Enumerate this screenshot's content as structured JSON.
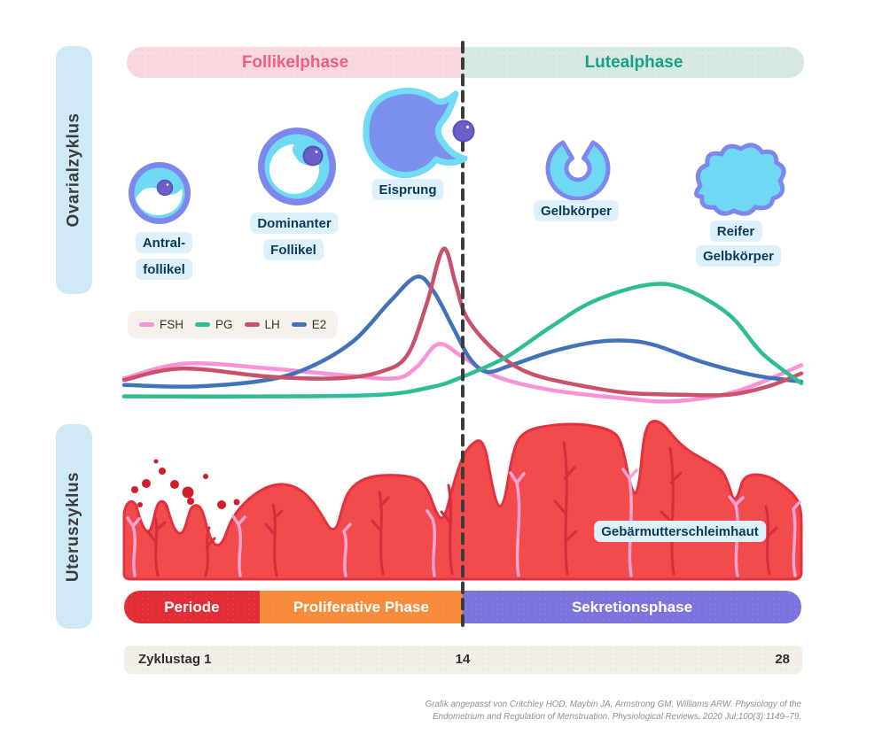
{
  "sections": {
    "ovarian": {
      "label": "Ovarialzyklus",
      "box_bg": "#cfeaf6",
      "text_color": "#3d3d3d"
    },
    "uterine": {
      "label": "Uteruszyklus",
      "box_bg": "#cfeaf6",
      "text_color": "#3d3d3d"
    }
  },
  "header": {
    "follicular": {
      "label": "Follikelphase",
      "bg": "#f8d9de",
      "text": "#ed5f80"
    },
    "luteal": {
      "label": "Lutealphase",
      "bg": "#d7eae2",
      "text": "#16a085"
    }
  },
  "stages": {
    "antral": {
      "line1": "Antral-",
      "line2": "follikel"
    },
    "dominant": {
      "line1": "Dominanter",
      "line2": "Follikel"
    },
    "ovulation": {
      "label": "Eisprung"
    },
    "corpus_luteum": {
      "label": "Gelbkörper"
    },
    "mature_corpus_luteum": {
      "line1": "Reifer",
      "line2": "Gelbkörper"
    }
  },
  "chart_data": {
    "type": "line",
    "title": "",
    "xlabel": "Zyklustag",
    "ylabel": "",
    "x_range": [
      0,
      28
    ],
    "x_ticks": [
      1,
      14,
      28
    ],
    "grid": false,
    "legend_position": "top-left",
    "divider_day": 14,
    "series": [
      {
        "name": "FSH",
        "color": "#f893d6",
        "points": [
          [
            0,
            15
          ],
          [
            2.5,
            24
          ],
          [
            6,
            21
          ],
          [
            9,
            17
          ],
          [
            11.2,
            15
          ],
          [
            12.1,
            22
          ],
          [
            13,
            36
          ],
          [
            14,
            28
          ],
          [
            15.4,
            16
          ],
          [
            17.6,
            8
          ],
          [
            20.5,
            3
          ],
          [
            22.7,
            1
          ],
          [
            25.3,
            7
          ],
          [
            28,
            23
          ]
        ]
      },
      {
        "name": "PG",
        "color": "#2fbe93",
        "points": [
          [
            0,
            4
          ],
          [
            6,
            4
          ],
          [
            10.6,
            5
          ],
          [
            12.8,
            10
          ],
          [
            14,
            16
          ],
          [
            15.8,
            28
          ],
          [
            17.6,
            46
          ],
          [
            19.4,
            62
          ],
          [
            21.6,
            72
          ],
          [
            23.1,
            70
          ],
          [
            25,
            54
          ],
          [
            26.4,
            30
          ],
          [
            28,
            12
          ]
        ]
      },
      {
        "name": "LH",
        "color": "#c9516a",
        "points": [
          [
            0,
            14
          ],
          [
            2.4,
            21
          ],
          [
            6,
            16
          ],
          [
            8.8,
            15
          ],
          [
            10.6,
            19
          ],
          [
            11.7,
            29
          ],
          [
            12.5,
            60
          ],
          [
            13.2,
            94
          ],
          [
            13.7,
            73
          ],
          [
            14.1,
            54
          ],
          [
            14.9,
            38
          ],
          [
            16,
            24
          ],
          [
            17.2,
            16
          ],
          [
            19.1,
            10
          ],
          [
            20.9,
            6
          ],
          [
            23.1,
            5
          ],
          [
            25,
            5
          ],
          [
            26.6,
            10
          ],
          [
            28,
            18
          ]
        ]
      },
      {
        "name": "E2",
        "color": "#4273b8",
        "points": [
          [
            0,
            11
          ],
          [
            2.9,
            10
          ],
          [
            5.9,
            14
          ],
          [
            7.7,
            22
          ],
          [
            9.5,
            38
          ],
          [
            11,
            62
          ],
          [
            12.1,
            77
          ],
          [
            12.8,
            68
          ],
          [
            13.6,
            46
          ],
          [
            14.3,
            27
          ],
          [
            15,
            19
          ],
          [
            16,
            23
          ],
          [
            17.6,
            31
          ],
          [
            19.4,
            37
          ],
          [
            20.8,
            38
          ],
          [
            22,
            35
          ],
          [
            23.9,
            25
          ],
          [
            26,
            17
          ],
          [
            28,
            13
          ]
        ]
      }
    ]
  },
  "uterine_art": {
    "lining_label": "Gebärmutterschleimhaut"
  },
  "timeline": {
    "phases": [
      {
        "label": "Periode",
        "color": "#e22d36",
        "start_day": 0,
        "end_day": 5.6
      },
      {
        "label": "Proliferative Phase",
        "color": "#f68b3c",
        "start_day": 5.6,
        "end_day": 14
      },
      {
        "label": "Sekretionsphase",
        "color": "#7c74dc",
        "start_day": 14,
        "end_day": 28
      }
    ]
  },
  "axis": {
    "start_label": "Zyklustag 1",
    "mid_label": "14",
    "end_label": "28"
  },
  "citation": {
    "line1": "Grafik angepasst von Critchley HOD, Maybin JA, Armstrong GM, Williams ARW. Physiology of the",
    "line2": "Endometrium and Regulation of Menstruation. Physiological Reviews. 2020 Jul;100(3):1149–79."
  },
  "divider_color": "#3b3b3b"
}
